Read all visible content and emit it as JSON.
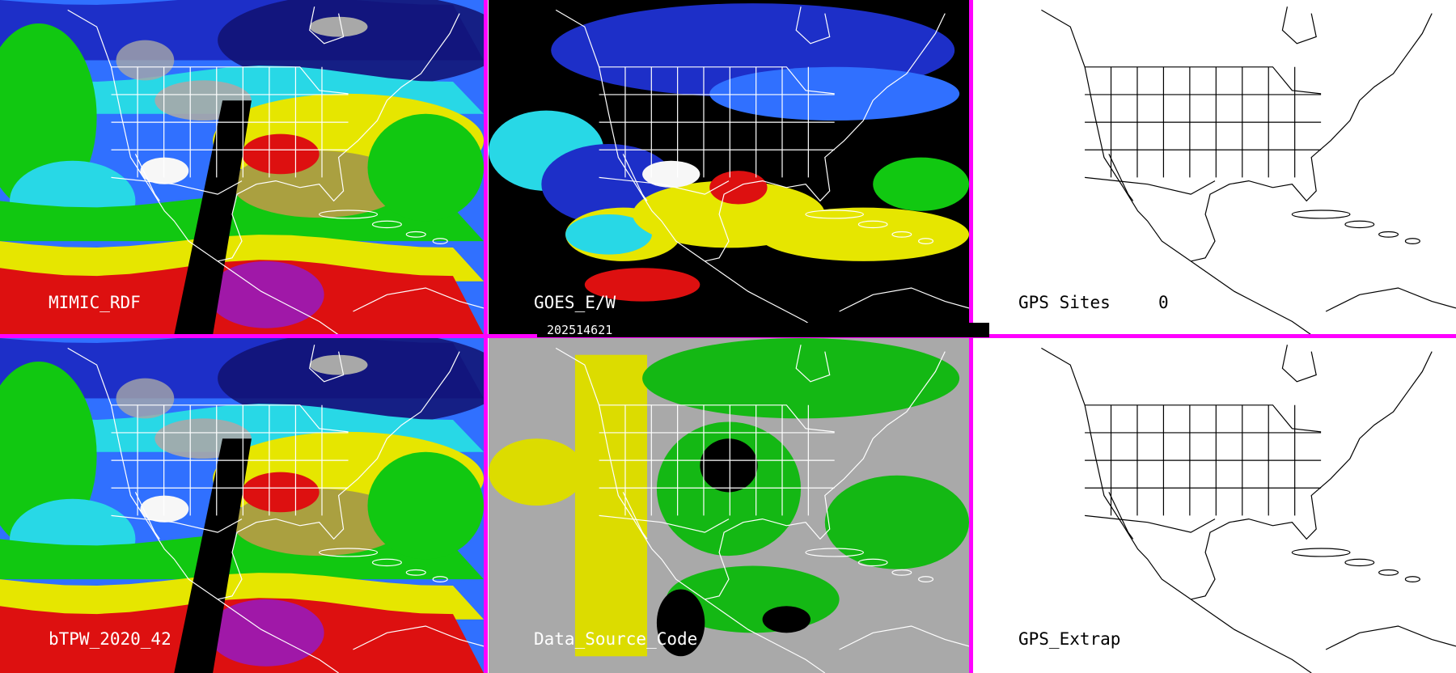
{
  "timestamp": "202514621",
  "colors": {
    "divider": "#ff00ff",
    "map_lines_on_image": "#ffffff",
    "map_lines_on_blank": "#000000",
    "blank_background": "#ffffff",
    "no_data": "#000000"
  },
  "panels": [
    {
      "id": "mimic-rdf",
      "label": "MIMIC_RDF",
      "extra": "",
      "kind": "tpw"
    },
    {
      "id": "goes-ew",
      "label": "GOES_E/W",
      "extra": "",
      "kind": "goes"
    },
    {
      "id": "gps-sites",
      "label": "GPS Sites",
      "extra": "0",
      "kind": "blank"
    },
    {
      "id": "btpw",
      "label": "bTPW_2020_42",
      "extra": "",
      "kind": "tpw"
    },
    {
      "id": "data-source",
      "label": "Data_Source_Code",
      "extra": "",
      "kind": "source"
    },
    {
      "id": "gps-extrap",
      "label": "GPS_Extrap",
      "extra": "",
      "kind": "blank"
    }
  ],
  "tpw_palette": [
    "#f7f7f7",
    "#a8a8a8",
    "#101070",
    "#1d2fc8",
    "#3070ff",
    "#28d8e6",
    "#1fc0a0",
    "#11c811",
    "#58e058",
    "#c8c814",
    "#e6e600",
    "#aaa040",
    "#dd1010",
    "#a018a8",
    "#000000"
  ],
  "source_palette": [
    "#a9a9a9",
    "#dcdc00",
    "#14b814",
    "#000000"
  ]
}
